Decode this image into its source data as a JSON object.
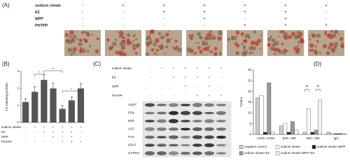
{
  "panel_a": {
    "label": "(A)",
    "rows": [
      {
        "name": "sodium oleate",
        "signs": [
          "-",
          "+",
          "+",
          "+",
          "+",
          "+",
          "+"
        ]
      },
      {
        "name": "E2",
        "signs": [
          "-",
          "-",
          "+",
          "+",
          "+",
          "+",
          "-"
        ]
      },
      {
        "name": "MPP",
        "signs": [
          "-",
          "-",
          "-",
          "+",
          "-",
          "+",
          "-"
        ]
      },
      {
        "name": "PHTPP",
        "signs": [
          "-",
          "-",
          "-",
          "-",
          "+",
          "+",
          "+"
        ]
      }
    ]
  },
  "panel_c": {
    "label": "(C)",
    "rows": [
      {
        "name": "sodium oleate",
        "signs": [
          "-",
          "+",
          "+",
          "+",
          "+",
          "+",
          "+"
        ]
      },
      {
        "name": "E2",
        "signs": [
          "-",
          "-",
          "+",
          "+",
          "+",
          "+",
          "-"
        ]
      },
      {
        "name": "MPP",
        "signs": [
          "-",
          "-",
          "-",
          "+",
          "-",
          "+",
          "-"
        ]
      },
      {
        "name": "PHTPP",
        "signs": [
          "-",
          "-",
          "-",
          "-",
          "+",
          "+",
          "+"
        ]
      }
    ],
    "proteins": [
      "AQP7",
      "ERa",
      "ERb",
      "ACC",
      "FAS",
      "GPAT",
      "GAPDH"
    ]
  },
  "chart_data": [
    {
      "type": "bar",
      "panel_label": "(B)",
      "y_label": "TG (mmol/g protein)",
      "values": [
        1.2,
        1.8,
        2.5,
        2.0,
        0.8,
        1.3,
        2.0
      ],
      "errors": [
        0.2,
        0.3,
        0.3,
        0.3,
        0.2,
        0.2,
        0.3
      ],
      "color": "#555555",
      "ylim": [
        0,
        3
      ],
      "yticks": [
        0,
        1,
        2,
        3
      ],
      "annotations": [
        "*",
        "**",
        "*"
      ],
      "conditions": [
        {
          "name": "sodium oleate",
          "signs": [
            "-",
            "+",
            "+",
            "+",
            "+",
            "+",
            "+"
          ]
        },
        {
          "name": "E2",
          "signs": [
            "-",
            "-",
            "+",
            "+",
            "+",
            "+",
            "-"
          ]
        },
        {
          "name": "MPP",
          "signs": [
            "-",
            "-",
            "-",
            "+",
            "-",
            "+",
            "-"
          ]
        },
        {
          "name": "PHTPP",
          "signs": [
            "-",
            "-",
            "-",
            "-",
            "+",
            "+",
            "+"
          ]
        }
      ]
    },
    {
      "type": "grouped-bar",
      "panel_label": "(D)",
      "y_label": "%Input",
      "categories": [
        "-1200~-1030",
        "-600~-480",
        "-350~-260",
        "IgG"
      ],
      "series": [
        {
          "name": "negative control",
          "color": "#cccccc",
          "values": [
            17,
            4,
            1,
            1
          ]
        },
        {
          "name": "sodium oleate",
          "color": "#ffffff",
          "values": [
            18,
            5,
            12,
            0.5
          ]
        },
        {
          "name": "sodium oleate+MPP",
          "color": "#222222",
          "values": [
            1,
            1,
            1,
            0.3
          ]
        },
        {
          "name": "sodium oleate+E2",
          "color": "#999999",
          "values": [
            24,
            6,
            2,
            0.5
          ]
        },
        {
          "name": "sodium oleate+MPP+E2",
          "color": "#f2f2f2",
          "values": [
            1,
            2,
            16,
            0.5
          ]
        }
      ],
      "annotations": [
        "*",
        "*"
      ],
      "ylim": [
        0,
        30
      ],
      "yticks": [
        0,
        5,
        10,
        15,
        20,
        25,
        30
      ]
    }
  ]
}
